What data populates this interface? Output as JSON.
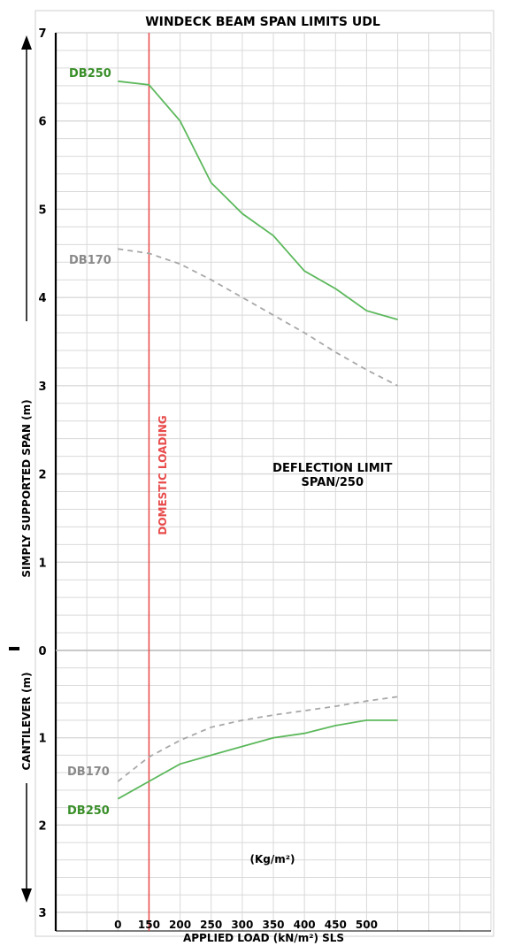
{
  "chart_data": {
    "type": "line",
    "title": "WINDECK BEAM SPAN LIMITS UDL",
    "xlabel": "APPLIED LOAD (kN/m²) SLS",
    "unit_label": "(Kg/m²)",
    "x": [
      0,
      50,
      100,
      150,
      200,
      250,
      300,
      350,
      400,
      450,
      500,
      550
    ],
    "x_tick_labels": [
      {
        "x": 0,
        "label": "0"
      },
      {
        "x": 50,
        "label": "150"
      },
      {
        "x": 100,
        "label": "200"
      },
      {
        "x": 150,
        "label": "250"
      },
      {
        "x": 200,
        "label": "300"
      },
      {
        "x": 250,
        "label": "350"
      },
      {
        "x": 300,
        "label": "400"
      },
      {
        "x": 350,
        "label": "450"
      },
      {
        "x": 400,
        "label": "500"
      }
    ],
    "xlim": [
      -100,
      600
    ],
    "upper_axis": {
      "label": "SIMPLY SUPPORTED SPAN (m)",
      "ticks": [
        "7",
        "6",
        "5",
        "4",
        "3",
        "2",
        "1",
        "0"
      ],
      "ylim": [
        0,
        7
      ]
    },
    "lower_axis": {
      "label": "CANTILEVER (m)",
      "ticks": [
        "0",
        "1",
        "2",
        "3"
      ],
      "ylim": [
        0,
        3
      ]
    },
    "series": [
      {
        "name": "DB250",
        "panel": "upper",
        "style": "solid",
        "color": "#5cb85c",
        "label_color": "#3a8f2a",
        "points": [
          [
            0,
            6.45
          ],
          [
            50,
            6.41
          ],
          [
            100,
            6.0
          ],
          [
            150,
            5.3
          ],
          [
            200,
            4.95
          ],
          [
            250,
            4.7
          ],
          [
            300,
            4.3
          ],
          [
            350,
            4.1
          ],
          [
            400,
            3.85
          ],
          [
            450,
            3.75
          ]
        ]
      },
      {
        "name": "DB170",
        "panel": "upper",
        "style": "dashed",
        "color": "#a8a8a8",
        "label_color": "#8a8a8a",
        "points": [
          [
            0,
            4.55
          ],
          [
            50,
            4.5
          ],
          [
            100,
            4.38
          ],
          [
            150,
            4.2
          ],
          [
            200,
            4.0
          ],
          [
            250,
            3.8
          ],
          [
            300,
            3.6
          ],
          [
            350,
            3.38
          ],
          [
            400,
            3.18
          ],
          [
            450,
            3.0
          ]
        ]
      },
      {
        "name": "DB250",
        "panel": "lower",
        "style": "solid",
        "color": "#5cb85c",
        "label_color": "#3a8f2a",
        "points": [
          [
            0,
            1.7
          ],
          [
            50,
            1.5
          ],
          [
            100,
            1.3
          ],
          [
            150,
            1.2
          ],
          [
            200,
            1.1
          ],
          [
            250,
            1.0
          ],
          [
            300,
            0.95
          ],
          [
            350,
            0.86
          ],
          [
            400,
            0.8
          ],
          [
            450,
            0.8
          ]
        ]
      },
      {
        "name": "DB170",
        "panel": "lower",
        "style": "dashed",
        "color": "#a8a8a8",
        "label_color": "#8a8a8a",
        "points": [
          [
            0,
            1.5
          ],
          [
            50,
            1.22
          ],
          [
            100,
            1.03
          ],
          [
            150,
            0.88
          ],
          [
            200,
            0.8
          ],
          [
            250,
            0.74
          ],
          [
            300,
            0.69
          ],
          [
            350,
            0.64
          ],
          [
            400,
            0.58
          ],
          [
            450,
            0.53
          ]
        ]
      }
    ],
    "vertical_marker": {
      "x": 50,
      "label": "DOMESTIC LOADING",
      "color": "#e84a4a"
    },
    "annotation": {
      "lines": [
        "DEFLECTION LIMIT",
        "SPAN/250"
      ],
      "x": 345,
      "y": 2.05
    },
    "grid": true,
    "colors": {
      "grid": "#d9d9d9",
      "axis": "#000000",
      "frame": "#cfcfcf",
      "background": "#ffffff"
    }
  }
}
